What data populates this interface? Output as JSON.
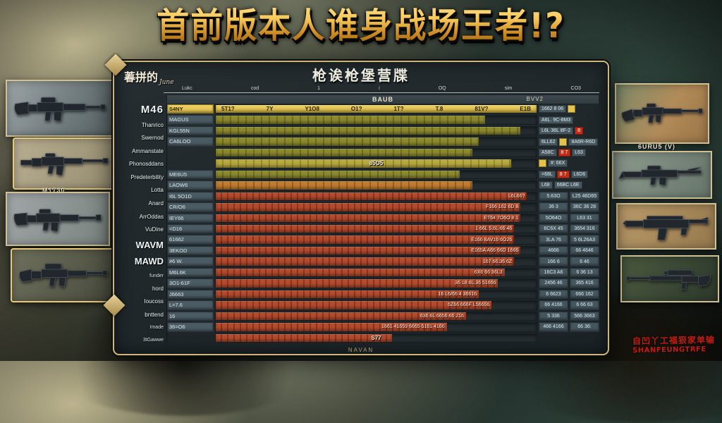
{
  "title": "首前版本人谁身战场王者!?",
  "panel": {
    "corner_label": "萶拼的",
    "corner_label_suffix": "June",
    "table_title": "枪诶枪堡营牒",
    "ruler_ticks": [
      "Lukc",
      "cod",
      "1",
      "i",
      "OQ",
      "sim",
      "CO3"
    ],
    "band_label": "BAUB",
    "band_right_label": "BVV2",
    "bottom_label": "NAVAN"
  },
  "gutter_labels": [
    {
      "text": "M46",
      "size": "xl"
    },
    {
      "text": "Thanrico",
      "size": "sm"
    },
    {
      "text": "Swernod",
      "size": "sm"
    },
    {
      "text": "Ammanstate",
      "size": "sm"
    },
    {
      "text": "Phonosddans",
      "size": "sm"
    },
    {
      "text": "Predeterbility",
      "size": "sm"
    },
    {
      "text": "Lotta",
      "size": "sm"
    },
    {
      "text": "Anard",
      "size": "sm"
    },
    {
      "text": "ArrOddas",
      "size": "sm"
    },
    {
      "text": "VuDine",
      "size": "sm"
    },
    {
      "text": "WAVM",
      "size": "lg"
    },
    {
      "text": "MAWD",
      "size": "lg"
    },
    {
      "text": "funder",
      "size": "xs"
    },
    {
      "text": "hord",
      "size": "sm"
    },
    {
      "text": "Ioucoss",
      "size": "sm"
    },
    {
      "text": "bnttend",
      "size": "sm"
    },
    {
      "text": "Imade",
      "size": "xs"
    },
    {
      "text": "3tGawwe",
      "size": "xs"
    }
  ],
  "rows": [
    {
      "label": "S4NY",
      "type": "yellow",
      "fill": 1.0,
      "values": [
        "5T1?",
        "7Y",
        "Y1O8",
        "O1?",
        "1T?",
        "T.8",
        "81V?",
        "E1B"
      ],
      "badges": [
        {
          "t": "1662 8 06",
          "bg": "slate"
        },
        {
          "t": "",
          "bg": "yellow"
        }
      ]
    },
    {
      "label": "MAGUS",
      "type": "olive",
      "fill": 0.84,
      "badges": [
        {
          "t": "A6L. 9C-8M3",
          "bg": "slate"
        }
      ]
    },
    {
      "label": "KGL55N",
      "type": "olive",
      "fill": 0.95,
      "badges": [
        {
          "t": "L6L 36L 8F-2",
          "bg": "slate"
        },
        {
          "t": "8",
          "bg": "red"
        }
      ]
    },
    {
      "label": "CA6LOO",
      "type": "olive",
      "fill": 0.82,
      "badges": [
        {
          "t": "6LL62",
          "bg": "slate"
        },
        {
          "t": "",
          "bg": "yellow"
        },
        {
          "t": "8A6R-R6D",
          "bg": "slate"
        }
      ]
    },
    {
      "label": "",
      "type": "olive",
      "fill": 0.8,
      "badges": [
        {
          "t": "A58C",
          "bg": "slate"
        },
        {
          "t": "8 7",
          "bg": "red"
        },
        {
          "t": "L63",
          "bg": "slate"
        }
      ]
    },
    {
      "label": "",
      "type": "olive-bright",
      "fill": 0.92,
      "mid": "85O5",
      "badges": [
        {
          "t": "",
          "bg": "yellow"
        },
        {
          "t": "#: 66X",
          "bg": "slate"
        }
      ]
    },
    {
      "label": "ME6U5",
      "type": "olive",
      "fill": 0.76,
      "badges": [
        {
          "t": "=68L",
          "bg": "slate"
        },
        {
          "t": "8 7",
          "bg": "red"
        },
        {
          "t": "L6D6",
          "bg": "slate"
        }
      ]
    },
    {
      "label": "LAOW6",
      "type": "orange",
      "fill": 0.8,
      "badges": [
        {
          "t": "L68",
          "bg": "slate"
        },
        {
          "t": "66BC L6E",
          "bg": "slate"
        }
      ]
    },
    {
      "label": "I6L 5O1D",
      "type": "red",
      "fill": 0.97,
      "end": "L6L66?",
      "cells": [
        "5.63O",
        "L25 46D65"
      ]
    },
    {
      "label": "CR/O6",
      "type": "red",
      "fill": 0.95,
      "end": "F166 162 6D 8",
      "cells": [
        "36 3",
        "36C 36 28"
      ]
    },
    {
      "label": "IEY66",
      "type": "red",
      "fill": 0.95,
      "end": "ET64 7O6O 8 1",
      "cells": [
        "5O64O",
        "L63 31"
      ]
    },
    {
      "label": "=D16",
      "type": "red",
      "fill": 0.93,
      "end": "1 66L 5.6L 66 46",
      "cells": [
        "6C6X 45",
        "3654 316"
      ]
    },
    {
      "label": "61662",
      "type": "red",
      "fill": 0.93,
      "end": "E166 8AV16 6O26",
      "cells": [
        "3LA 76",
        "5 6L26A3"
      ]
    },
    {
      "label": "3EKOD",
      "type": "red",
      "fill": 0.95,
      "end": "E165A A66 66D 1666",
      "cells": [
        "4666",
        "66 4646"
      ]
    },
    {
      "label": "#6 W.",
      "type": "red",
      "fill": 0.93,
      "end": "167 66.36 6Z",
      "cells": [
        "166 6",
        "6 46"
      ]
    },
    {
      "label": "M6L6K",
      "type": "red",
      "fill": 0.9,
      "end": "6X6 66 36L3",
      "cells": [
        "16C3 A6",
        "6 36 13"
      ]
    },
    {
      "label": "3O1-61F",
      "type": "red",
      "fill": 0.88,
      "end": "36 18 6L.36 51666",
      "cells": [
        "2456 46",
        "365 416"
      ]
    },
    {
      "label": "J6663",
      "type": "red",
      "fill": 0.82,
      "end": "16 L6/66 4 36616",
      "cells": [
        "6 6623",
        "666 162"
      ]
    },
    {
      "label": "L=7.6",
      "type": "red",
      "fill": 0.86,
      "end": "6Z66 666F L56656",
      "cells": [
        "66 4166",
        "6 66 63"
      ]
    },
    {
      "label": "16",
      "type": "red",
      "fill": 0.78,
      "end": "636 6L 6656 66 216",
      "cells": [
        "5 336",
        "566 3663"
      ]
    },
    {
      "label": "36=O6",
      "type": "red",
      "fill": 0.72,
      "end": "1661 41659 6665 5161 4166",
      "cells": [
        "466 4166",
        "66 36:"
      ]
    },
    {
      "label": "",
      "type": "red",
      "fill": 0.55,
      "mid": "S77"
    }
  ],
  "left_column": {
    "card2_label": "M1730"
  },
  "right_column": {
    "card2_label": "6URU5 (V)"
  },
  "watermark": {
    "line1": "自凹丫工福狠家单输",
    "line2": "SHANFEUNGTRFE"
  },
  "colors": {
    "accent_gold": "#d8b96a",
    "row_yellow": "#e3c24e",
    "row_olive": "#8d8a2e",
    "row_orange": "#bf7a2e",
    "row_red": "#b44a2c",
    "cell_slate": "#4b5b63",
    "watermark_red": "#c41d12"
  }
}
